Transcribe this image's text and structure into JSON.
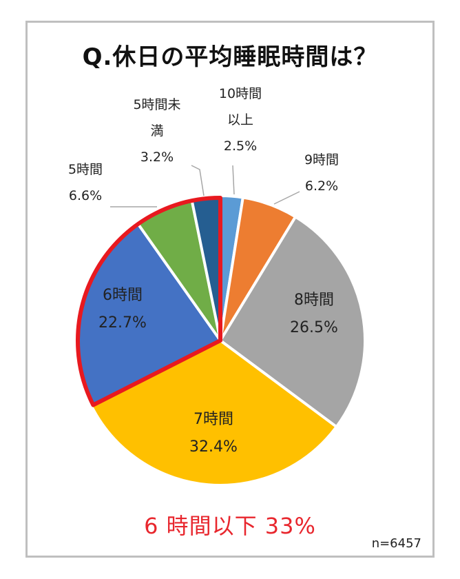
{
  "title": "Q.休日の平均睡眠時間は？",
  "highlight_text": "6 時間以下 33%",
  "sample_size": "n=6457",
  "chart_data": {
    "type": "pie",
    "title": "Q.休日の平均睡眠時間は？",
    "start_angle_deg": 0,
    "direction": "clockwise",
    "highlighted_group": [
      "6時間",
      "5時間",
      "5時間未満"
    ],
    "slices": [
      {
        "name": "10時間以上",
        "label_lines": [
          "10時間",
          "以上"
        ],
        "value_label": "2.5%",
        "value": 2.5,
        "color": "#5b9bd5",
        "label_pos": "outside"
      },
      {
        "name": "9時間",
        "label_lines": [
          "9時間"
        ],
        "value_label": "6.2%",
        "value": 6.2,
        "color": "#ed7d31",
        "label_pos": "outside"
      },
      {
        "name": "8時間",
        "label_lines": [
          "8時間"
        ],
        "value_label": "26.5%",
        "value": 26.5,
        "color": "#a5a5a5",
        "label_pos": "inside"
      },
      {
        "name": "7時間",
        "label_lines": [
          "7時間"
        ],
        "value_label": "32.4%",
        "value": 32.4,
        "color": "#ffc000",
        "label_pos": "inside"
      },
      {
        "name": "6時間",
        "label_lines": [
          "6時間"
        ],
        "value_label": "22.7%",
        "value": 22.7,
        "color": "#4472c4",
        "label_pos": "inside"
      },
      {
        "name": "5時間",
        "label_lines": [
          "5時間"
        ],
        "value_label": "6.6%",
        "value": 6.6,
        "color": "#70ad47",
        "label_pos": "outside"
      },
      {
        "name": "5時間未満",
        "label_lines": [
          "5時間未",
          "満"
        ],
        "value_label": "3.2%",
        "value": 3.2,
        "color": "#255e91",
        "label_pos": "outside"
      }
    ]
  }
}
